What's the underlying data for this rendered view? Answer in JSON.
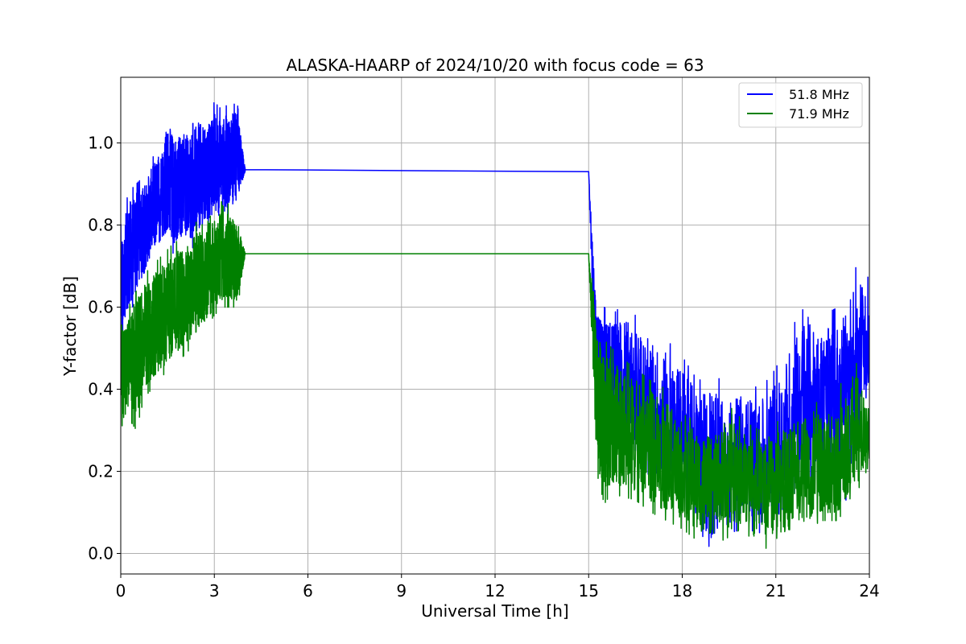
{
  "chart_data": {
    "type": "line",
    "title": "ALASKA-HAARP of 2024/10/20 with focus code = 63",
    "xlabel": "Universal Time [h]",
    "ylabel": "Y-factor [dB]",
    "xlim": [
      0,
      24
    ],
    "ylim": [
      -0.05,
      1.16
    ],
    "xticks": [
      0,
      3,
      6,
      9,
      12,
      15,
      18,
      21,
      24
    ],
    "yticks": [
      0.0,
      0.2,
      0.4,
      0.6,
      0.8,
      1.0
    ],
    "xtick_labels": [
      "0",
      "3",
      "6",
      "9",
      "12",
      "15",
      "18",
      "21",
      "24"
    ],
    "ytick_labels": [
      "0.0",
      "0.2",
      "0.4",
      "0.6",
      "0.8",
      "1.0"
    ],
    "grid": true,
    "legend_position": "top-right",
    "series": [
      {
        "name": "51.8 MHz",
        "color": "#0000ff",
        "x": [
          0,
          0.25,
          0.5,
          0.75,
          1.0,
          1.25,
          1.5,
          1.75,
          2.0,
          2.25,
          2.5,
          2.75,
          3.0,
          3.25,
          3.5,
          3.75,
          4.0,
          15.0,
          15.25,
          15.5,
          15.75,
          16.0,
          16.5,
          17.0,
          17.5,
          18.0,
          18.5,
          19.0,
          19.5,
          20.0,
          20.5,
          21.0,
          21.5,
          22.0,
          22.5,
          23.0,
          23.5,
          24.0
        ],
        "y": [
          0.65,
          0.72,
          0.76,
          0.79,
          0.83,
          0.86,
          0.9,
          0.88,
          0.92,
          0.9,
          0.94,
          0.93,
          0.95,
          0.94,
          0.96,
          0.95,
          0.935,
          0.93,
          0.45,
          0.42,
          0.44,
          0.43,
          0.4,
          0.35,
          0.3,
          0.27,
          0.22,
          0.2,
          0.22,
          0.21,
          0.2,
          0.22,
          0.3,
          0.4,
          0.35,
          0.3,
          0.45,
          0.5
        ],
        "envelope_min": [
          0.52,
          0.58,
          0.62,
          0.66,
          0.72,
          0.74,
          0.76,
          0.72,
          0.74,
          0.74,
          0.76,
          0.78,
          0.8,
          0.8,
          0.82,
          0.84,
          0.935,
          0.93,
          0.28,
          0.26,
          0.26,
          0.27,
          0.25,
          0.18,
          0.14,
          0.12,
          0.06,
          0.0,
          0.05,
          0.06,
          0.05,
          0.06,
          0.1,
          0.15,
          0.08,
          0.06,
          0.2,
          0.4
        ],
        "envelope_max": [
          0.8,
          0.88,
          0.9,
          0.92,
          0.96,
          1.0,
          1.07,
          1.04,
          1.05,
          1.04,
          1.07,
          1.05,
          1.1,
          1.08,
          1.1,
          1.09,
          0.935,
          0.93,
          0.6,
          0.6,
          0.58,
          0.6,
          0.58,
          0.55,
          0.52,
          0.48,
          0.42,
          0.44,
          0.4,
          0.42,
          0.4,
          0.45,
          0.55,
          0.61,
          0.58,
          0.6,
          0.7,
          0.67
        ]
      },
      {
        "name": "71.9 MHz",
        "color": "#008000",
        "x": [
          0,
          0.25,
          0.5,
          0.75,
          1.0,
          1.25,
          1.5,
          1.75,
          2.0,
          2.25,
          2.5,
          2.75,
          3.0,
          3.25,
          3.5,
          3.75,
          4.0,
          15.0,
          15.25,
          15.5,
          15.75,
          16.0,
          16.5,
          17.0,
          17.5,
          18.0,
          18.5,
          19.0,
          19.5,
          20.0,
          20.5,
          21.0,
          21.5,
          22.0,
          22.5,
          23.0,
          23.5,
          24.0
        ],
        "y": [
          0.42,
          0.47,
          0.5,
          0.52,
          0.55,
          0.56,
          0.58,
          0.6,
          0.62,
          0.63,
          0.66,
          0.67,
          0.7,
          0.71,
          0.72,
          0.71,
          0.73,
          0.73,
          0.35,
          0.3,
          0.3,
          0.28,
          0.27,
          0.25,
          0.22,
          0.2,
          0.17,
          0.16,
          0.18,
          0.17,
          0.16,
          0.17,
          0.18,
          0.2,
          0.2,
          0.22,
          0.27,
          0.3
        ],
        "envelope_min": [
          0.28,
          0.33,
          0.3,
          0.38,
          0.4,
          0.42,
          0.45,
          0.46,
          0.48,
          0.5,
          0.53,
          0.55,
          0.58,
          0.6,
          0.6,
          0.6,
          0.73,
          0.73,
          0.2,
          0.12,
          0.15,
          0.14,
          0.13,
          0.1,
          0.08,
          0.06,
          0.03,
          0.02,
          0.04,
          0.02,
          0.02,
          0.0,
          0.04,
          0.06,
          0.08,
          0.08,
          0.15,
          0.18
        ],
        "envelope_max": [
          0.55,
          0.6,
          0.64,
          0.68,
          0.7,
          0.72,
          0.74,
          0.76,
          0.76,
          0.78,
          0.82,
          0.84,
          0.86,
          0.89,
          0.84,
          0.82,
          0.73,
          0.73,
          0.58,
          0.52,
          0.5,
          0.48,
          0.45,
          0.42,
          0.4,
          0.34,
          0.32,
          0.3,
          0.36,
          0.32,
          0.3,
          0.32,
          0.33,
          0.38,
          0.36,
          0.4,
          0.48,
          0.38
        ]
      }
    ]
  }
}
